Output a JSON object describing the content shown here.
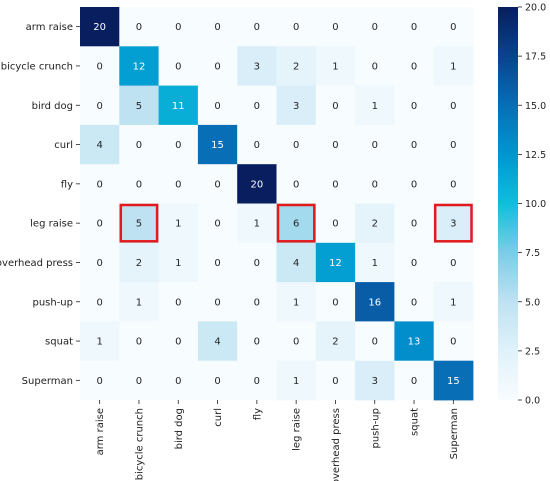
{
  "chart_data": {
    "type": "heatmap",
    "title": "",
    "xlabel": "",
    "ylabel": "",
    "row_labels": [
      "arm raise",
      "bicycle crunch",
      "bird dog",
      "curl",
      "fly",
      "leg raise",
      "overhead press",
      "push-up",
      "squat",
      "Superman"
    ],
    "col_labels": [
      "arm raise",
      "bicycle crunch",
      "bird dog",
      "curl",
      "fly",
      "leg raise",
      "overhead press",
      "push-up",
      "squat",
      "Superman"
    ],
    "values": [
      [
        20,
        0,
        0,
        0,
        0,
        0,
        0,
        0,
        0,
        0
      ],
      [
        0,
        12,
        0,
        0,
        3,
        2,
        1,
        0,
        0,
        1
      ],
      [
        0,
        5,
        11,
        0,
        0,
        3,
        0,
        1,
        0,
        0
      ],
      [
        4,
        0,
        0,
        15,
        0,
        0,
        0,
        0,
        0,
        0
      ],
      [
        0,
        0,
        0,
        0,
        20,
        0,
        0,
        0,
        0,
        0
      ],
      [
        0,
        5,
        1,
        0,
        1,
        6,
        0,
        2,
        0,
        3
      ],
      [
        0,
        2,
        1,
        0,
        0,
        4,
        12,
        1,
        0,
        0
      ],
      [
        0,
        1,
        0,
        0,
        0,
        1,
        0,
        16,
        0,
        1
      ],
      [
        1,
        0,
        0,
        4,
        0,
        0,
        2,
        0,
        13,
        0
      ],
      [
        0,
        0,
        0,
        0,
        0,
        1,
        0,
        3,
        0,
        15
      ]
    ],
    "vmin": 0,
    "vmax": 20,
    "colormap": "light-blue-to-navy",
    "colorbar_ticks": [
      "0.0",
      "2.5",
      "5.0",
      "7.5",
      "10.0",
      "12.5",
      "15.0",
      "17.5",
      "20.0"
    ],
    "highlighted_cells": [
      {
        "row": 5,
        "col": 1
      },
      {
        "row": 5,
        "col": 5
      },
      {
        "row": 5,
        "col": 9
      }
    ],
    "highlight_color": "#e31a1c"
  }
}
